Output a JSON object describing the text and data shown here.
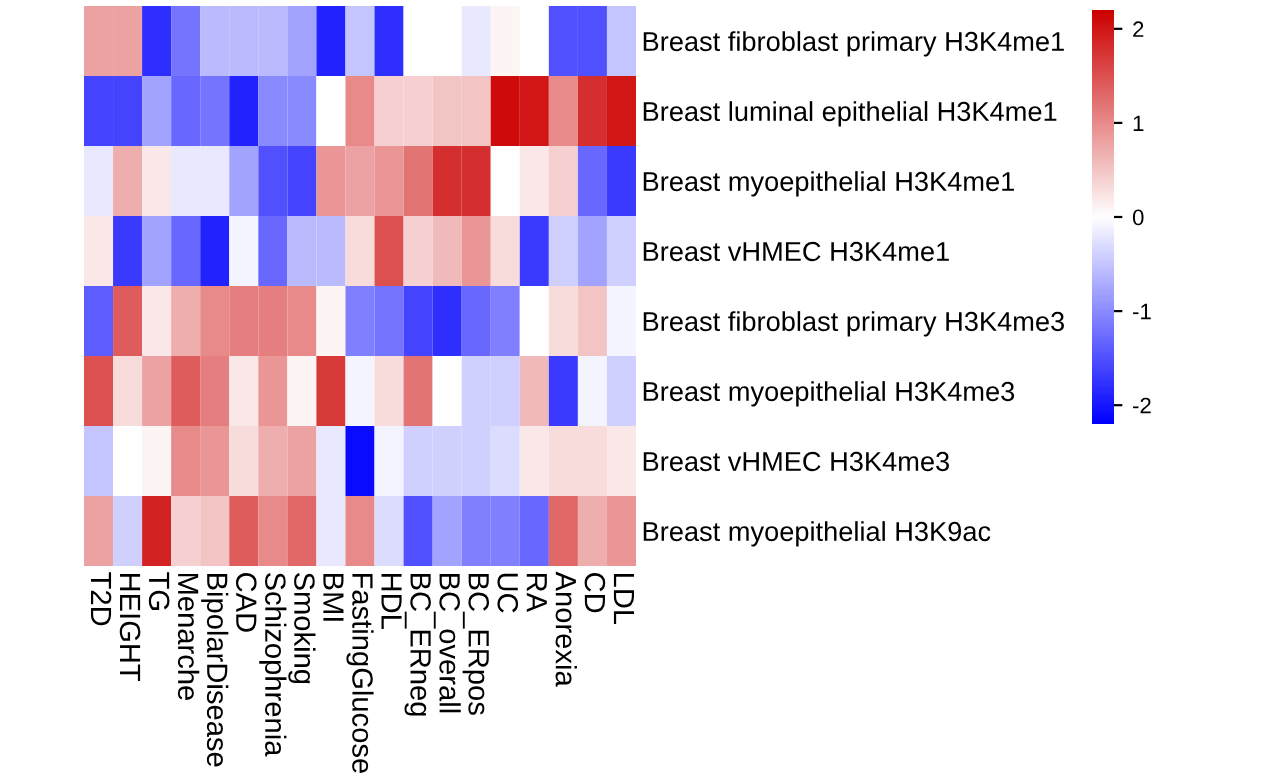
{
  "chart_data": {
    "type": "heatmap",
    "categories": [
      "T2D",
      "HEIGHT",
      "TG",
      "Menarche",
      "BipolarDisease",
      "CAD",
      "Schizophrenia",
      "Smoking",
      "BMI",
      "FastingGlucose",
      "HDL",
      "BC_ERneg",
      "BC_overall",
      "BC_ERpos",
      "UC",
      "RA",
      "Anorexia",
      "CD",
      "LDL"
    ],
    "y_categories": [
      "Breast fibroblast primary H3K4me1",
      "Breast luminal epithelial H3K4me1",
      "Breast myoepithelial H3K4me1",
      "Breast vHMEC H3K4me1",
      "Breast fibroblast primary H3K4me3",
      "Breast myoepithelial H3K4me3",
      "Breast vHMEC H3K4me3",
      "Breast myoepithelial H3K9ac"
    ],
    "cells": [
      [
        0.8,
        0.8,
        -1.8,
        -1.2,
        -0.6,
        -0.6,
        -0.6,
        -0.8,
        -1.9,
        -0.5,
        -1.8,
        0,
        0,
        -0.2,
        0.1,
        0,
        -1.5,
        -1.5,
        -0.5
      ],
      [
        -1.6,
        -1.6,
        -0.8,
        -1.3,
        -1.2,
        -1.9,
        -1,
        -1,
        0,
        1,
        0.4,
        0.4,
        0.5,
        0.5,
        2.1,
        2,
        1,
        1.8,
        2
      ],
      [
        -0.2,
        0.7,
        0.2,
        -0.2,
        -0.2,
        -0.8,
        -1.5,
        -1.6,
        0.9,
        0.8,
        0.9,
        1.2,
        1.8,
        1.8,
        0,
        0.2,
        0.4,
        -1.3,
        -1.7
      ],
      [
        0.2,
        -1.7,
        -0.8,
        -1.3,
        -1.9,
        -0.1,
        -1.3,
        -0.6,
        -0.6,
        0.3,
        1.5,
        0.4,
        0.6,
        0.9,
        0.3,
        -1.7,
        -0.4,
        -0.8,
        -0.4
      ],
      [
        -1.4,
        1.4,
        0.2,
        0.7,
        1,
        1.1,
        1.1,
        1,
        0.1,
        -1.1,
        -1.2,
        -1.6,
        -1.8,
        -1.3,
        -1.1,
        0,
        0.3,
        0.5,
        -0.1
      ],
      [
        1.5,
        0.3,
        0.8,
        1.4,
        1.1,
        0.2,
        0.9,
        0.1,
        1.7,
        -0.1,
        0.3,
        1.2,
        0,
        -0.4,
        -0.4,
        0.6,
        -1.7,
        -0.1,
        -0.4
      ],
      [
        -0.5,
        0,
        0.1,
        1,
        0.9,
        0.3,
        0.7,
        0.8,
        -0.2,
        -2.1,
        -0.1,
        -0.4,
        -0.4,
        -0.4,
        -0.3,
        0.2,
        0.3,
        0.3,
        0.2
      ],
      [
        0.8,
        -0.4,
        1.9,
        0.4,
        0.5,
        1.4,
        1,
        1.3,
        -0.2,
        1,
        -0.3,
        -1.5,
        -0.8,
        -1.1,
        -1.1,
        -1.3,
        1.3,
        0.7,
        0.9
      ]
    ],
    "colors": [
      "#0000ff",
      "#ffffff",
      "#cc0000"
    ],
    "clim": [
      -2.2,
      2.2
    ],
    "cticks": [
      -2,
      -1,
      0,
      1,
      2
    ]
  }
}
